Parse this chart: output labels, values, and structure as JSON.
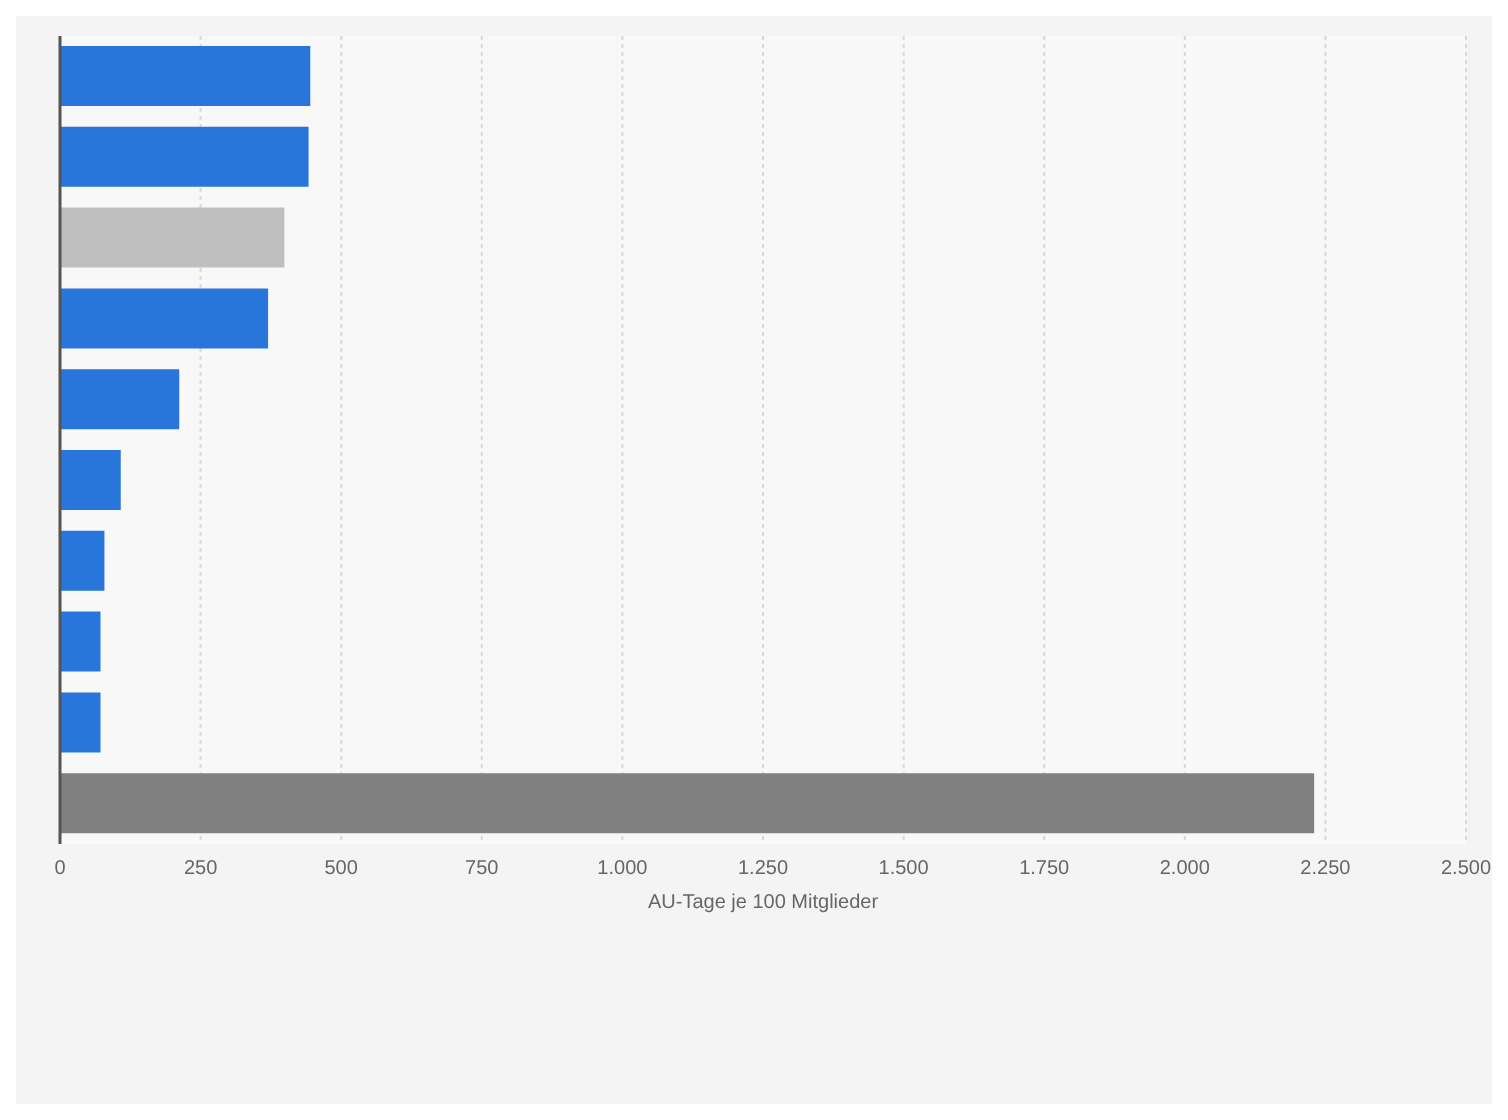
{
  "chart_data": {
    "type": "bar",
    "orientation": "horizontal",
    "xlabel": "AU-Tage je 100 Mitglieder",
    "categories": [
      null,
      null,
      null,
      null,
      null,
      null,
      null,
      null,
      null,
      null
    ],
    "values": [
      445,
      442,
      399,
      370,
      212,
      108,
      79,
      72,
      72,
      2230
    ],
    "colors": [
      "#2875dc",
      "#2875dc",
      "#bfbfbf",
      "#2875dc",
      "#2875dc",
      "#2875dc",
      "#2875dc",
      "#2875dc",
      "#2875dc",
      "#808080"
    ],
    "xlim": [
      0,
      2500
    ],
    "xticks": [
      {
        "value": 0,
        "label": "0"
      },
      {
        "value": 250,
        "label": "250"
      },
      {
        "value": 500,
        "label": "500"
      },
      {
        "value": 750,
        "label": "750"
      },
      {
        "value": 1000,
        "label": "1.000"
      },
      {
        "value": 1250,
        "label": "1.250"
      },
      {
        "value": 1500,
        "label": "1.500"
      },
      {
        "value": 1750,
        "label": "1.750"
      },
      {
        "value": 2000,
        "label": "2.000"
      },
      {
        "value": 2250,
        "label": "2.250"
      },
      {
        "value": 2500,
        "label": "2.500"
      }
    ],
    "grid": "x",
    "legend": false
  }
}
